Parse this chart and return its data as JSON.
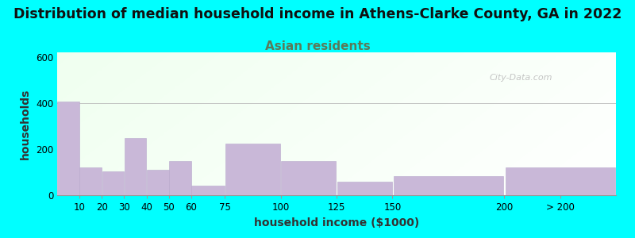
{
  "title": "Distribution of median household income in Athens-Clarke County, GA in 2022",
  "subtitle": "Asian residents",
  "xlabel": "household income ($1000)",
  "ylabel": "households",
  "bar_labels": [
    "10",
    "20",
    "30",
    "40",
    "50",
    "60",
    "75",
    "100",
    "125",
    "150",
    "200",
    "> 200"
  ],
  "bar_values": [
    405,
    120,
    105,
    248,
    110,
    148,
    40,
    225,
    148,
    57,
    82,
    120
  ],
  "bar_left_edges": [
    0,
    10,
    20,
    30,
    40,
    50,
    60,
    75,
    100,
    125,
    150,
    200
  ],
  "bar_widths": [
    10,
    10,
    10,
    10,
    10,
    10,
    15,
    25,
    25,
    25,
    50,
    50
  ],
  "bar_color": "#C9B8D8",
  "bar_edge_color": "#B8A8CC",
  "background_outer": "#00FFFF",
  "background_plot": "#e8f5e4",
  "ylim": [
    0,
    620
  ],
  "yticks": [
    0,
    200,
    400,
    600
  ],
  "xlim": [
    0,
    250
  ],
  "watermark": "City-Data.com",
  "title_fontsize": 12.5,
  "subtitle_fontsize": 11,
  "subtitle_color": "#5a7a5a",
  "title_color": "#111111",
  "axis_label_fontsize": 10,
  "tick_label_fontsize": 8.5
}
